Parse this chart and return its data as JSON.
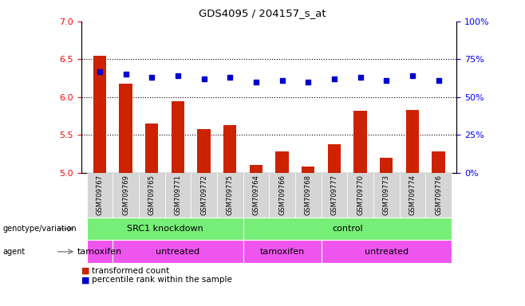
{
  "title": "GDS4095 / 204157_s_at",
  "samples": [
    "GSM709767",
    "GSM709769",
    "GSM709765",
    "GSM709771",
    "GSM709772",
    "GSM709775",
    "GSM709764",
    "GSM709766",
    "GSM709768",
    "GSM709777",
    "GSM709770",
    "GSM709773",
    "GSM709774",
    "GSM709776"
  ],
  "bar_values": [
    6.55,
    6.18,
    5.65,
    5.95,
    5.58,
    5.63,
    5.1,
    5.28,
    5.08,
    5.38,
    5.82,
    5.2,
    5.83,
    5.28
  ],
  "dot_percentiles": [
    67,
    65,
    63,
    64,
    62,
    63,
    60,
    61,
    60,
    62,
    63,
    61,
    64,
    61
  ],
  "bar_color": "#cc2200",
  "dot_color": "#0000cc",
  "ymin": 5.0,
  "ymax": 7.0,
  "yticks": [
    5.0,
    5.5,
    6.0,
    6.5,
    7.0
  ],
  "y2min": 0,
  "y2max": 100,
  "y2ticks": [
    0,
    25,
    50,
    75,
    100
  ],
  "y2ticklabels": [
    "0%",
    "25%",
    "50%",
    "75%",
    "100%"
  ],
  "hlines": [
    5.5,
    6.0,
    6.5
  ],
  "geno_groups": [
    {
      "label": "SRC1 knockdown",
      "start": 0,
      "end": 5
    },
    {
      "label": "control",
      "start": 6,
      "end": 13
    }
  ],
  "agent_groups": [
    {
      "label": "tamoxifen",
      "start": 0,
      "end": 0
    },
    {
      "label": "untreated",
      "start": 1,
      "end": 5
    },
    {
      "label": "tamoxifen",
      "start": 6,
      "end": 8
    },
    {
      "label": "untreated",
      "start": 9,
      "end": 13
    }
  ],
  "geno_color": "#77ee77",
  "agent_color": "#ee55ee",
  "legend_red": "transformed count",
  "legend_blue": "percentile rank within the sample",
  "genotype_label": "genotype/variation",
  "agent_label": "agent",
  "bg_color": "#ffffff",
  "n_samples": 14
}
